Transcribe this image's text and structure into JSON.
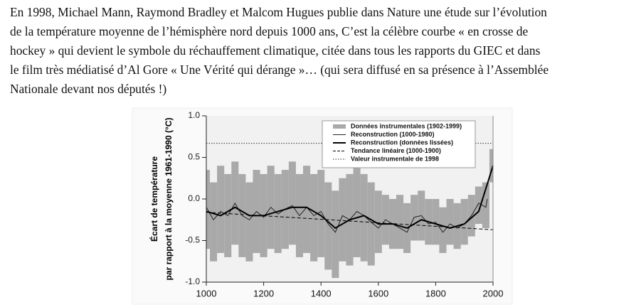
{
  "paragraph": {
    "lines": [
      "En 1998, Michael Mann, Raymond Bradley et Malcom Hugues publie dans Nature une étude sur l’évolution",
      "de la température moyenne de l’hémisphère nord depuis 1000 ans, C’est la célèbre courbe « en crosse de",
      "hockey » qui devient le symbole du réchauffement climatique, citée dans tous les rapports du GIEC et dans",
      "le film très médiatisé d’Al Gore « Une Vérité qui dérange »… (qui sera diffusé en sa présence à l’Assemblée",
      "Nationale devant nos députés !)"
    ]
  },
  "chart_data": {
    "type": "line",
    "y_label": [
      "Écart de température",
      "par rapport à la moyenne 1961-1990 (°C)"
    ],
    "xlim": [
      1000,
      2000
    ],
    "xticks": [
      1000,
      1200,
      1400,
      1600,
      1800,
      2000
    ],
    "ylim": [
      -1,
      1
    ],
    "yticks": [
      {
        "value": -1,
        "label": "-1.0"
      },
      -0.5,
      {
        "value": 0,
        "label": "0.0"
      },
      0.5,
      {
        "value": 1,
        "label": "1.0"
      }
    ],
    "series": [
      {
        "name": "Données instrumentales (1902-1999)",
        "style": "band",
        "color": "#a9a9a9",
        "x": [
          1000,
          1025,
          1050,
          1075,
          1100,
          1125,
          1150,
          1175,
          1200,
          1225,
          1250,
          1275,
          1300,
          1325,
          1350,
          1375,
          1400,
          1425,
          1450,
          1475,
          1500,
          1525,
          1550,
          1575,
          1600,
          1625,
          1650,
          1675,
          1700,
          1725,
          1750,
          1775,
          1800,
          1825,
          1850,
          1875,
          1900,
          1925,
          1950,
          1975,
          2000
        ],
        "upper": [
          0.35,
          0.2,
          0.4,
          0.3,
          0.45,
          0.3,
          0.2,
          0.35,
          0.3,
          0.4,
          0.3,
          0.35,
          0.45,
          0.3,
          0.4,
          0.3,
          0.35,
          0.2,
          0.1,
          0.25,
          0.3,
          0.4,
          0.3,
          0.2,
          0.1,
          0.05,
          0.0,
          0.05,
          -0.05,
          0.05,
          0.1,
          0.0,
          0.0,
          -0.1,
          0.0,
          -0.05,
          0.0,
          0.05,
          0.15,
          0.2,
          0.6
        ],
        "lower": [
          -0.6,
          -0.75,
          -0.65,
          -0.7,
          -0.55,
          -0.7,
          -0.75,
          -0.65,
          -0.7,
          -0.6,
          -0.65,
          -0.6,
          -0.55,
          -0.7,
          -0.65,
          -0.75,
          -0.7,
          -0.85,
          -0.95,
          -0.75,
          -0.8,
          -0.7,
          -0.75,
          -0.8,
          -0.65,
          -0.55,
          -0.6,
          -0.6,
          -0.65,
          -0.5,
          -0.5,
          -0.55,
          -0.55,
          -0.65,
          -0.55,
          -0.6,
          -0.55,
          -0.45,
          -0.3,
          -0.35,
          0.2
        ]
      },
      {
        "name": "Reconstruction (1000-1980)",
        "style": "line",
        "color": "#222222",
        "width": 1,
        "x": [
          1000,
          1025,
          1050,
          1075,
          1100,
          1125,
          1150,
          1175,
          1200,
          1225,
          1250,
          1275,
          1300,
          1325,
          1350,
          1375,
          1400,
          1425,
          1450,
          1475,
          1500,
          1525,
          1550,
          1575,
          1600,
          1625,
          1650,
          1675,
          1700,
          1725,
          1750,
          1775,
          1800,
          1825,
          1850,
          1875,
          1900,
          1925,
          1950,
          1975,
          1980
        ],
        "values": [
          -0.1,
          -0.25,
          -0.15,
          -0.2,
          -0.05,
          -0.2,
          -0.25,
          -0.15,
          -0.22,
          -0.1,
          -0.18,
          -0.12,
          -0.08,
          -0.2,
          -0.1,
          -0.2,
          -0.15,
          -0.3,
          -0.4,
          -0.2,
          -0.25,
          -0.15,
          -0.2,
          -0.28,
          -0.35,
          -0.25,
          -0.3,
          -0.35,
          -0.4,
          -0.22,
          -0.2,
          -0.3,
          -0.28,
          -0.4,
          -0.3,
          -0.35,
          -0.3,
          -0.2,
          -0.05,
          -0.1,
          0.0
        ]
      },
      {
        "name": "Reconstruction (données lissées)",
        "style": "line",
        "color": "#000000",
        "width": 2,
        "x": [
          1000,
          1050,
          1100,
          1150,
          1200,
          1250,
          1300,
          1350,
          1400,
          1450,
          1500,
          1550,
          1600,
          1650,
          1700,
          1750,
          1800,
          1850,
          1900,
          1950,
          2000
        ],
        "values": [
          -0.15,
          -0.2,
          -0.1,
          -0.2,
          -0.2,
          -0.15,
          -0.1,
          -0.1,
          -0.2,
          -0.35,
          -0.25,
          -0.2,
          -0.3,
          -0.3,
          -0.35,
          -0.25,
          -0.3,
          -0.35,
          -0.3,
          -0.15,
          0.4
        ]
      },
      {
        "name": "Tendance linéaire (1000-1900)",
        "style": "dashed",
        "color": "#000000",
        "width": 1,
        "x": [
          1000,
          2000
        ],
        "values": [
          -0.16,
          -0.37
        ]
      },
      {
        "name": "Valeur instrumentale de 1998",
        "style": "dotted",
        "color": "#333333",
        "width": 1,
        "x": [
          1000,
          2000
        ],
        "values": [
          0.67,
          0.67
        ]
      }
    ]
  }
}
